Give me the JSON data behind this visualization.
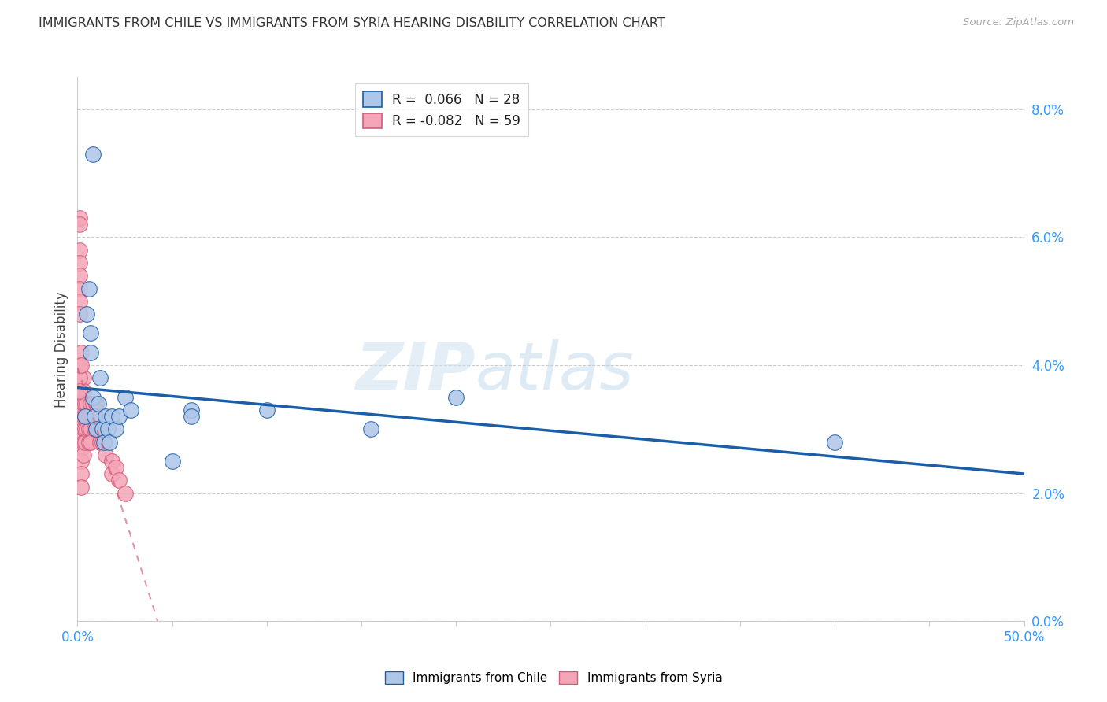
{
  "title": "IMMIGRANTS FROM CHILE VS IMMIGRANTS FROM SYRIA HEARING DISABILITY CORRELATION CHART",
  "source": "Source: ZipAtlas.com",
  "ylabel": "Hearing Disability",
  "chile_R": 0.066,
  "chile_N": 28,
  "syria_R": -0.082,
  "syria_N": 59,
  "chile_color": "#aec6e8",
  "chile_line_color": "#1a5ea8",
  "syria_color": "#f4a6b8",
  "syria_line_color": "#d45a7a",
  "watermark_zip": "ZIP",
  "watermark_atlas": "atlas",
  "xlim": [
    0.0,
    0.5
  ],
  "ylim": [
    0.0,
    0.085
  ],
  "xtick_positions": [
    0.0,
    0.05,
    0.1,
    0.15,
    0.2,
    0.25,
    0.3,
    0.35,
    0.4,
    0.45,
    0.5
  ],
  "ytick_positions": [
    0.0,
    0.02,
    0.04,
    0.06,
    0.08
  ],
  "chile_scatter_x": [
    0.004,
    0.005,
    0.006,
    0.007,
    0.007,
    0.008,
    0.009,
    0.01,
    0.011,
    0.012,
    0.013,
    0.014,
    0.015,
    0.016,
    0.017,
    0.018,
    0.02,
    0.022,
    0.025,
    0.028,
    0.05,
    0.06,
    0.06,
    0.1,
    0.155,
    0.2,
    0.4,
    0.008
  ],
  "chile_scatter_y": [
    0.032,
    0.048,
    0.052,
    0.045,
    0.042,
    0.035,
    0.032,
    0.03,
    0.034,
    0.038,
    0.03,
    0.028,
    0.032,
    0.03,
    0.028,
    0.032,
    0.03,
    0.032,
    0.035,
    0.033,
    0.025,
    0.033,
    0.032,
    0.033,
    0.03,
    0.035,
    0.028,
    0.073
  ],
  "syria_scatter_x": [
    0.001,
    0.001,
    0.001,
    0.001,
    0.001,
    0.001,
    0.001,
    0.001,
    0.002,
    0.002,
    0.002,
    0.002,
    0.002,
    0.002,
    0.002,
    0.002,
    0.003,
    0.003,
    0.003,
    0.003,
    0.003,
    0.003,
    0.003,
    0.004,
    0.004,
    0.004,
    0.004,
    0.005,
    0.005,
    0.005,
    0.006,
    0.006,
    0.006,
    0.007,
    0.007,
    0.007,
    0.007,
    0.008,
    0.008,
    0.009,
    0.009,
    0.01,
    0.01,
    0.01,
    0.011,
    0.012,
    0.012,
    0.013,
    0.015,
    0.018,
    0.018,
    0.02,
    0.022,
    0.025,
    0.001,
    0.001,
    0.001,
    0.002,
    0.002
  ],
  "syria_scatter_y": [
    0.063,
    0.062,
    0.058,
    0.056,
    0.054,
    0.052,
    0.05,
    0.048,
    0.035,
    0.033,
    0.031,
    0.029,
    0.027,
    0.025,
    0.023,
    0.021,
    0.038,
    0.036,
    0.034,
    0.032,
    0.03,
    0.028,
    0.026,
    0.034,
    0.032,
    0.03,
    0.028,
    0.034,
    0.032,
    0.03,
    0.032,
    0.03,
    0.028,
    0.034,
    0.032,
    0.03,
    0.028,
    0.034,
    0.032,
    0.032,
    0.03,
    0.034,
    0.032,
    0.03,
    0.03,
    0.028,
    0.03,
    0.028,
    0.026,
    0.025,
    0.023,
    0.024,
    0.022,
    0.02,
    0.04,
    0.038,
    0.036,
    0.042,
    0.04
  ]
}
